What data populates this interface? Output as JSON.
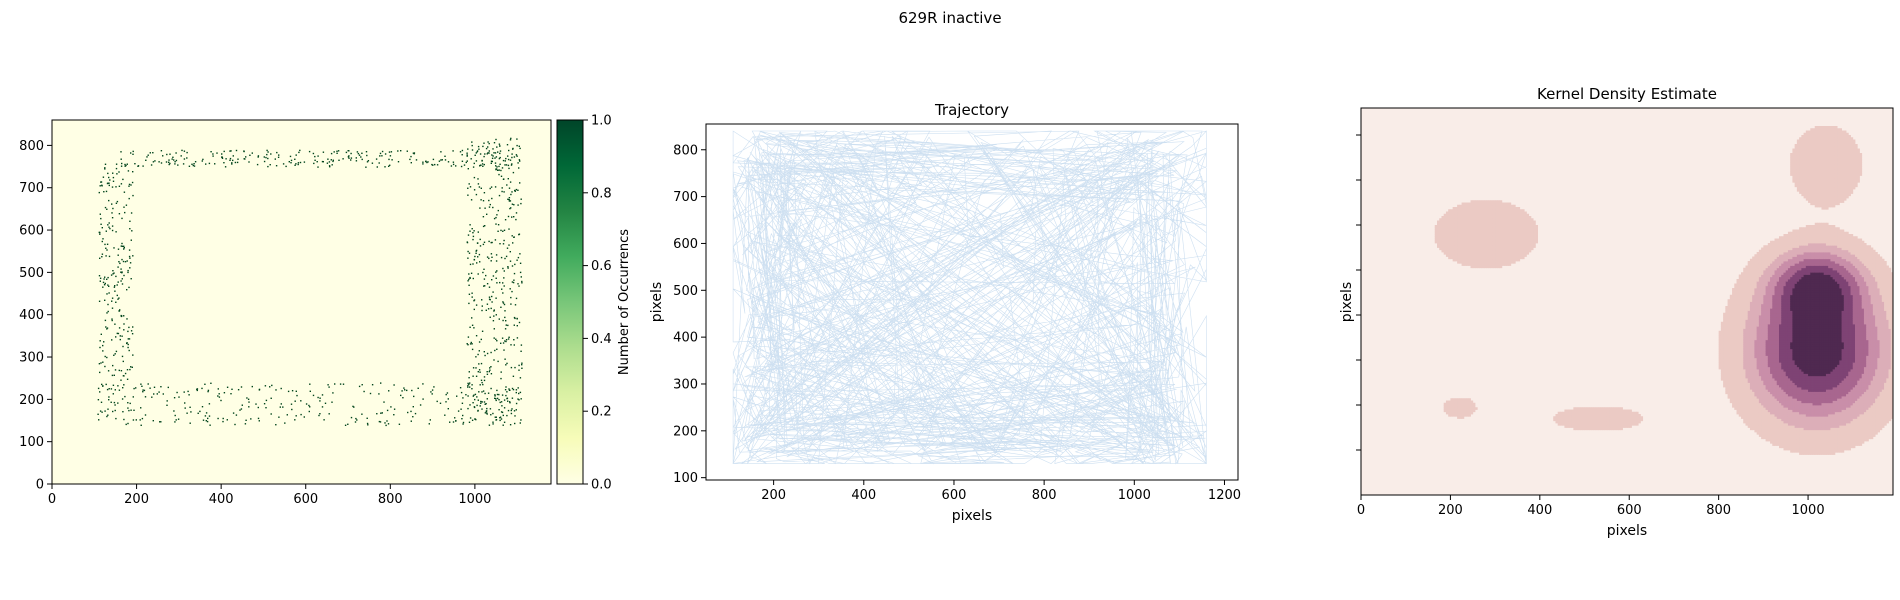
{
  "figure": {
    "suptitle": "629R inactive"
  },
  "chart_data": [
    {
      "type": "heatmap",
      "title": "",
      "xlabel": "",
      "ylabel": "",
      "xlim": [
        0,
        1180
      ],
      "ylim": [
        0,
        860
      ],
      "xticks": [
        0,
        200,
        400,
        600,
        800,
        1000
      ],
      "yticks": [
        0,
        100,
        200,
        300,
        400,
        500,
        600,
        700,
        800
      ],
      "colormap": [
        "#ffffe5",
        "#f7fcb9",
        "#d9f0a3",
        "#addd8e",
        "#78c679",
        "#41ab5d",
        "#238443",
        "#006837",
        "#004529"
      ],
      "colorbar": {
        "label": "Number of Occurrencs",
        "range": [
          0,
          1
        ],
        "ticks": [
          0.0,
          0.2,
          0.4,
          0.6,
          0.8,
          1.0
        ]
      },
      "occupied_regions_pixels": [
        {
          "x": [
            160,
            1110
          ],
          "y": [
            750,
            790
          ]
        },
        {
          "x": [
            100,
            1110
          ],
          "y": [
            140,
            240
          ]
        },
        {
          "x": [
            110,
            190
          ],
          "y": [
            160,
            760
          ]
        },
        {
          "x": [
            980,
            1110
          ],
          "y": [
            150,
            820
          ]
        }
      ]
    },
    {
      "type": "line",
      "title": "Trajectory",
      "xlabel": "pixels",
      "ylabel": "pixels",
      "xlim": [
        50,
        1230
      ],
      "ylim": [
        95,
        855
      ],
      "xticks": [
        200,
        400,
        600,
        800,
        1000,
        1200
      ],
      "yticks": [
        100,
        200,
        300,
        400,
        500,
        600,
        700,
        800
      ],
      "color": "#c6dbef",
      "path_extent": {
        "x": [
          110,
          1160
        ],
        "y": [
          130,
          840
        ]
      }
    },
    {
      "type": "area",
      "title": "Kernel Density Estimate",
      "xlabel": "pixels",
      "ylabel": "pixels",
      "xlim": [
        0,
        1190
      ],
      "ylim": [
        0,
        860
      ],
      "xticks": [
        0,
        200,
        400,
        600,
        800,
        1000
      ],
      "background": "#f9ede8",
      "levels": [
        "#ebcac4",
        "#dcaeb8",
        "#c98ea9",
        "#a8668f",
        "#7e4374",
        "#4f2950"
      ],
      "peaks": [
        {
          "x": 1020,
          "y": 470,
          "amp": 2.1,
          "sx": 70,
          "sy": 55
        },
        {
          "x": 1020,
          "y": 320,
          "amp": 3.2,
          "sx": 105,
          "sy": 110
        },
        {
          "x": 1040,
          "y": 735,
          "amp": 0.75,
          "sx": 65,
          "sy": 70
        },
        {
          "x": 280,
          "y": 580,
          "amp": 0.9,
          "sx": 85,
          "sy": 55
        },
        {
          "x": 530,
          "y": 170,
          "amp": 0.55,
          "sx": 105,
          "sy": 28
        },
        {
          "x": 220,
          "y": 195,
          "amp": 0.48,
          "sx": 45,
          "sy": 28
        }
      ]
    }
  ]
}
